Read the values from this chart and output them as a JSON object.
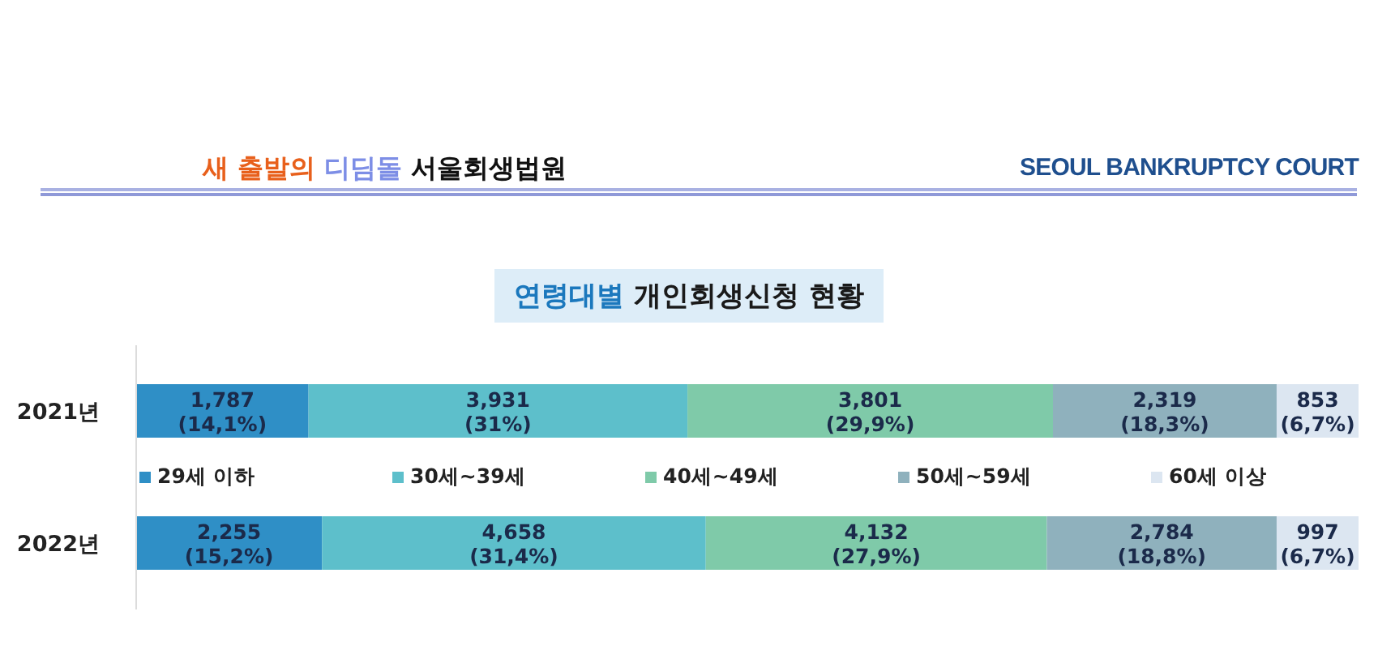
{
  "chart_data": {
    "type": "bar",
    "orientation": "horizontal",
    "stacked": true,
    "title": "연령대별 개인회생신청 현황",
    "annotations": [
      "새 출발의 디딤돌 서울회생법원",
      "SEOUL BANKRUPTCY COURT"
    ],
    "categories": [
      "2021년",
      "2022년"
    ],
    "series": [
      {
        "name": "29세 이하",
        "color": "#2f8fc6",
        "values": [
          14.1,
          15.2
        ],
        "value_labels": [
          "1,787\n(14,1%)",
          "2,255\n(15,2%)"
        ]
      },
      {
        "name": "30세~39세",
        "color": "#5dbfcb",
        "values": [
          31,
          31.4
        ],
        "value_labels": [
          "3,931\n(31%)",
          "4,658\n(31,4%)"
        ]
      },
      {
        "name": "40세~49세",
        "color": "#7fcaa9",
        "values": [
          29.9,
          27.9
        ],
        "value_labels": [
          "3,801\n(29,9%)",
          "4,132\n(27,9%)"
        ]
      },
      {
        "name": "50세~59세",
        "color": "#8fb1bd",
        "values": [
          18.3,
          18.8
        ],
        "value_labels": [
          "2,319\n(18,3%)",
          "2,784\n(18,8%)"
        ]
      },
      {
        "name": "60세 이상",
        "color": "#dce6f1",
        "values": [
          6.7,
          6.7
        ],
        "value_labels": [
          "853\n(6,7%)",
          "997\n(6,7%)"
        ]
      }
    ],
    "xlim": [
      0,
      100
    ],
    "tick_labels": "y",
    "legend": "center"
  }
}
